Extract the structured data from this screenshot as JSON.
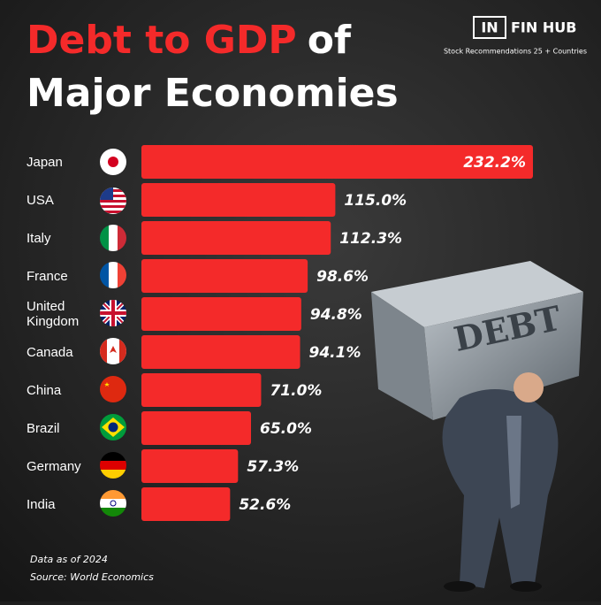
{
  "chart_data": {
    "type": "bar",
    "orientation": "horizontal",
    "title_parts": [
      "Debt to GDP",
      "of",
      "Major Economies"
    ],
    "categories": [
      "Japan",
      "USA",
      "Italy",
      "France",
      "United Kingdom",
      "Canada",
      "China",
      "Brazil",
      "Germany",
      "India"
    ],
    "values": [
      232.2,
      115.0,
      112.3,
      98.6,
      94.8,
      94.1,
      71.0,
      65.0,
      57.3,
      52.6
    ],
    "value_labels": [
      "232.2%",
      "115.0%",
      "112.3%",
      "98.6%",
      "94.8%",
      "94.1%",
      "71.0%",
      "65.0%",
      "57.3%",
      "52.6%"
    ],
    "color": "#f42a2a",
    "notes": [
      "Data as of 2024",
      "Source: World Economics"
    ]
  },
  "logo": {
    "left": "IN",
    "right": "FIN HUB",
    "tagline": "Stock Recommendations 25 + Countries"
  },
  "illustration_text": "DEBT"
}
